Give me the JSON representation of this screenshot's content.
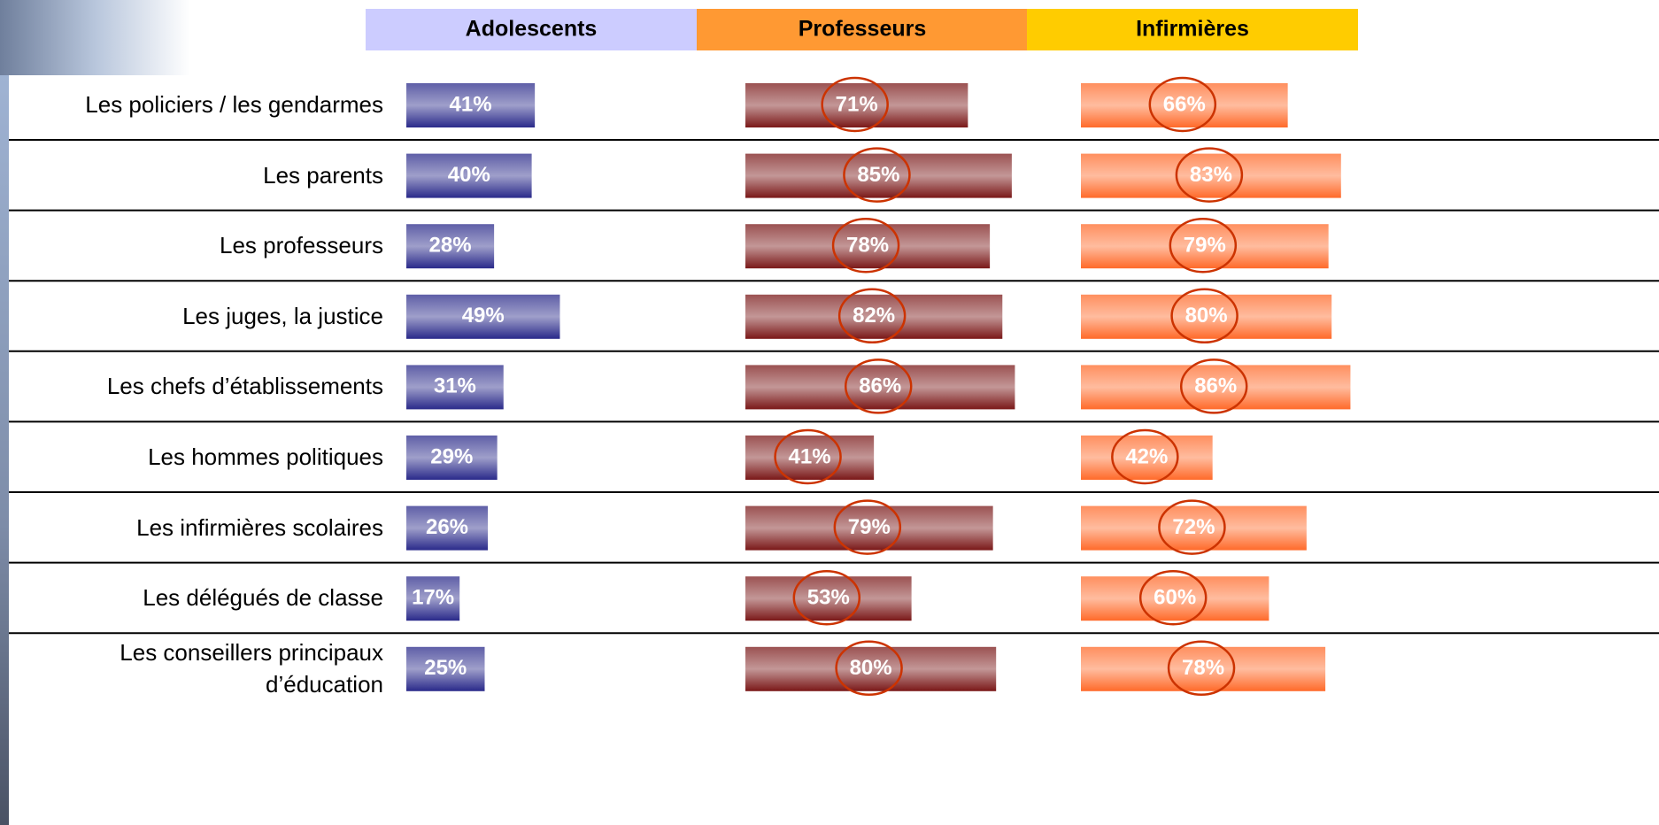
{
  "chart_data": {
    "type": "bar",
    "orientation": "horizontal",
    "categories": [
      "Les policiers / les gendarmes",
      "Les parents",
      "Les professeurs",
      "Les juges, la justice",
      "Les chefs d’établissements",
      "Les hommes politiques",
      "Les infirmières scolaires",
      "Les délégués de classe",
      "Les conseillers principaux\nd’éducation"
    ],
    "series": [
      {
        "name": "Adolescents",
        "header_color": "#ccccff",
        "color": "#2a2a8a",
        "values": [
          41,
          40,
          28,
          49,
          31,
          29,
          26,
          17,
          25
        ],
        "value_labels": [
          "41%",
          "40%",
          "28%",
          "49%",
          "31%",
          "29%",
          "26%",
          "17%",
          "25%"
        ]
      },
      {
        "name": "Professeurs",
        "header_color": "#ff9933",
        "color": "#7a1818",
        "values": [
          71,
          85,
          78,
          82,
          86,
          41,
          79,
          53,
          80
        ],
        "value_labels": [
          "71%",
          "85%",
          "78%",
          "82%",
          "86%",
          "41%",
          "79%",
          "53%",
          "80%"
        ]
      },
      {
        "name": "Infirmières",
        "header_color": "#ffcc00",
        "color": "#ff6a2a",
        "values": [
          66,
          83,
          79,
          80,
          86,
          42,
          72,
          60,
          78
        ],
        "value_labels": [
          "66%",
          "83%",
          "79%",
          "80%",
          "86%",
          "42%",
          "72%",
          "60%",
          "78%"
        ]
      }
    ]
  }
}
